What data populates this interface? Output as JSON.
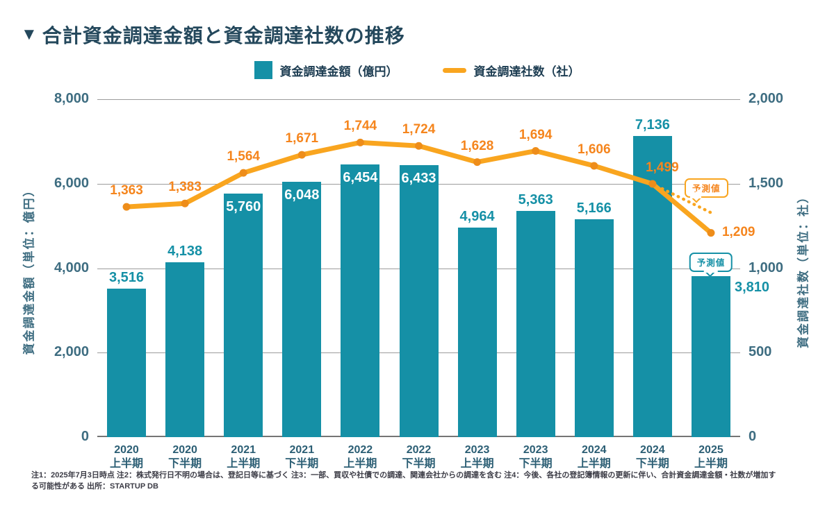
{
  "title": {
    "bullet": "▼",
    "text": "合計資金調達金額と資金調達社数の推移"
  },
  "legend": {
    "items": [
      {
        "label": "資金調達金額（億円）",
        "swatch": "bar-square",
        "color": "#1590A6"
      },
      {
        "label": "資金調達社数（社）",
        "swatch": "line-segment",
        "color": "#F9A51F"
      }
    ]
  },
  "colors": {
    "bar": "#1590A6",
    "line": "#F9A51F",
    "line_marker": "#EE8D1A",
    "line_value_label": "#F5851D",
    "bar_value_label": "#1590A6",
    "axis_text": "#3E6D81",
    "category_text": "#2B5E74",
    "grid": "#9B9B9B",
    "title_text": "#24485C"
  },
  "chart_data": {
    "type": "bar+line",
    "title": "合計資金調達金額と資金調達社数の推移",
    "categories": [
      [
        "2020",
        "上半期"
      ],
      [
        "2020",
        "下半期"
      ],
      [
        "2021",
        "上半期"
      ],
      [
        "2021",
        "下半期"
      ],
      [
        "2022",
        "上半期"
      ],
      [
        "2022",
        "下半期"
      ],
      [
        "2023",
        "上半期"
      ],
      [
        "2023",
        "下半期"
      ],
      [
        "2024",
        "上半期"
      ],
      [
        "2024",
        "下半期"
      ],
      [
        "2025",
        "上半期"
      ]
    ],
    "bar_series": {
      "name": "資金調達金額（億円）",
      "axis": "left",
      "values": [
        3516,
        4138,
        5760,
        6048,
        6454,
        6433,
        4964,
        5363,
        5166,
        7136,
        3810
      ],
      "labels": [
        "3,516",
        "4,138",
        "5,760",
        "6,048",
        "6,454",
        "6,433",
        "4,964",
        "5,363",
        "5,166",
        "7,136",
        "3,810"
      ],
      "label_placement": [
        "above",
        "above",
        "inside",
        "inside",
        "inside",
        "inside",
        "above",
        "above",
        "above",
        "above",
        "right"
      ]
    },
    "line_series": {
      "name": "資金調達社数（社）",
      "axis": "right",
      "values": [
        1363,
        1383,
        1564,
        1671,
        1744,
        1724,
        1628,
        1694,
        1606,
        1499,
        1209
      ],
      "labels": [
        "1,363",
        "1,383",
        "1,564",
        "1,671",
        "1,744",
        "1,724",
        "1,628",
        "1,694",
        "1,606",
        "1,499",
        "1,209"
      ],
      "label_placement": [
        "above",
        "above",
        "above",
        "above",
        "above",
        "above",
        "above",
        "above",
        "above",
        "above-right",
        "right"
      ]
    },
    "left_axis": {
      "title": "資金調達金額（単位：億円）",
      "min": 0,
      "max": 8000,
      "ticks": [
        "8,000",
        "6,000",
        "4,000",
        "2,000",
        "0"
      ]
    },
    "right_axis": {
      "title": "資金調達社数（単位：社）",
      "min": 0,
      "max": 2000,
      "ticks": [
        "2,000",
        "1,500",
        "1,000",
        "500",
        "0"
      ]
    },
    "grid": true,
    "legend_position": "top",
    "forecast": {
      "index": 10,
      "line_badge": "予測値",
      "bar_badge": "予測値"
    }
  },
  "footnote": {
    "text": "注1：2025年7月3日時点 注2：株式発行日不明の場合は、登記日等に基づく 注3：一部、買収や社債での調達、関連会社からの調達を含む 注4：今後、各社の登記簿情報の更新に伴い、合計資金調達金額・社数が増加する可能性がある 出所：STARTUP DB"
  }
}
